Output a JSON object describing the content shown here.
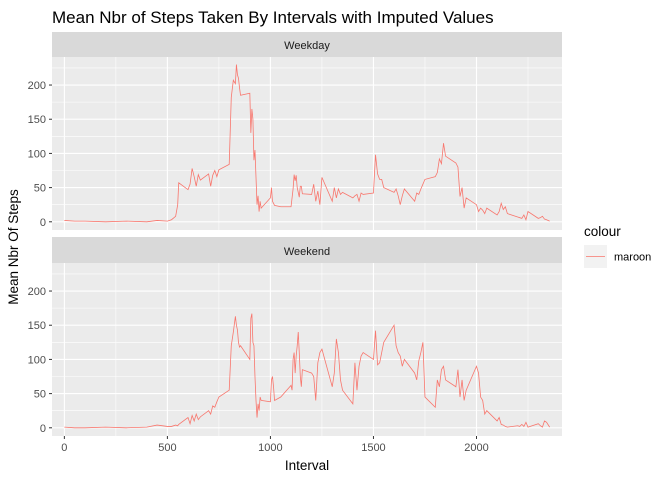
{
  "chart_data": {
    "type": "line",
    "title": "Mean Nbr of Steps Taken By Intervals with Imputed Values",
    "xlabel": "Interval",
    "ylabel": "Mean Nbr Of Steps",
    "xlim": [
      -60,
      2415
    ],
    "ylim": [
      -12,
      241
    ],
    "x_ticks": [
      0,
      500,
      1000,
      1500,
      2000
    ],
    "y_ticks": [
      0,
      50,
      100,
      150,
      200
    ],
    "grid": true,
    "line_color": "#F8766D",
    "legend": {
      "title": "colour",
      "placement": "right",
      "entries": [
        {
          "label": "maroon",
          "color": "#F8766D"
        }
      ]
    },
    "facets": [
      {
        "strip": "Weekday",
        "series": [
          {
            "name": "maroon",
            "x": [
              0,
              50,
              100,
              200,
              300,
              400,
              450,
              500,
              520,
              540,
              550,
              555,
              600,
              610,
              620,
              630,
              640,
              650,
              660,
              700,
              710,
              720,
              730,
              740,
              750,
              800,
              810,
              820,
              830,
              835,
              840,
              845,
              850,
              855,
              900,
              905,
              910,
              915,
              920,
              925,
              930,
              935,
              940,
              945,
              950,
              955,
              1000,
              1005,
              1010,
              1015,
              1020,
              1050,
              1100,
              1105,
              1110,
              1115,
              1120,
              1125,
              1130,
              1135,
              1140,
              1145,
              1150,
              1155,
              1200,
              1210,
              1220,
              1230,
              1240,
              1250,
              1300,
              1310,
              1320,
              1330,
              1340,
              1350,
              1400,
              1410,
              1420,
              1430,
              1440,
              1450,
              1500,
              1510,
              1520,
              1530,
              1540,
              1550,
              1600,
              1610,
              1620,
              1630,
              1640,
              1650,
              1700,
              1710,
              1720,
              1730,
              1740,
              1750,
              1800,
              1810,
              1820,
              1830,
              1840,
              1850,
              1900,
              1910,
              1920,
              1930,
              1940,
              1950,
              2000,
              2010,
              2020,
              2030,
              2040,
              2050,
              2100,
              2110,
              2120,
              2130,
              2140,
              2150,
              2200,
              2210,
              2220,
              2230,
              2240,
              2250,
              2300,
              2310,
              2320,
              2330,
              2340,
              2355
            ],
            "y": [
              2,
              1,
              1,
              0,
              1,
              0,
              2,
              1,
              3,
              8,
              25,
              57,
              47,
              55,
              78,
              66,
              52,
              69,
              61,
              70,
              52,
              68,
              75,
              66,
              76,
              84,
              182,
              207,
              202,
              230,
              215,
              210,
              196,
              185,
              188,
              130,
              165,
              150,
              90,
              105,
              65,
              25,
              38,
              15,
              30,
              20,
              35,
              50,
              30,
              27,
              24,
              22,
              22,
              35,
              48,
              69,
              60,
              68,
              50,
              43,
              36,
              52,
              52,
              41,
              40,
              55,
              30,
              45,
              25,
              65,
              30,
              50,
              35,
              48,
              40,
              43,
              35,
              38,
              40,
              30,
              42,
              40,
              42,
              98,
              70,
              62,
              62,
              50,
              43,
              48,
              38,
              25,
              38,
              48,
              30,
              42,
              40,
              48,
              55,
              62,
              66,
              72,
              92,
              85,
              115,
              96,
              86,
              80,
              37,
              50,
              20,
              35,
              25,
              15,
              20,
              17,
              12,
              20,
              10,
              15,
              27,
              18,
              22,
              12,
              7,
              6,
              5,
              10,
              3,
              15,
              5,
              6,
              8,
              4,
              3,
              1
            ]
          }
        ]
      },
      {
        "strip": "Weekend",
        "series": [
          {
            "name": "maroon",
            "x": [
              0,
              50,
              100,
              200,
              300,
              400,
              450,
              500,
              520,
              540,
              550,
              555,
              600,
              610,
              620,
              630,
              640,
              650,
              660,
              700,
              710,
              720,
              730,
              740,
              750,
              800,
              810,
              820,
              830,
              835,
              840,
              845,
              850,
              855,
              900,
              905,
              910,
              915,
              920,
              925,
              930,
              935,
              940,
              945,
              950,
              955,
              1000,
              1005,
              1010,
              1015,
              1020,
              1050,
              1100,
              1105,
              1110,
              1115,
              1120,
              1125,
              1130,
              1135,
              1140,
              1145,
              1150,
              1155,
              1200,
              1210,
              1220,
              1230,
              1240,
              1250,
              1300,
              1310,
              1320,
              1330,
              1340,
              1350,
              1400,
              1410,
              1420,
              1430,
              1440,
              1450,
              1500,
              1510,
              1520,
              1530,
              1540,
              1550,
              1600,
              1610,
              1620,
              1630,
              1640,
              1650,
              1700,
              1710,
              1720,
              1730,
              1740,
              1750,
              1800,
              1810,
              1820,
              1830,
              1840,
              1850,
              1900,
              1910,
              1920,
              1930,
              1940,
              1950,
              2000,
              2010,
              2020,
              2030,
              2040,
              2050,
              2100,
              2110,
              2120,
              2130,
              2140,
              2150,
              2200,
              2210,
              2220,
              2230,
              2240,
              2250,
              2300,
              2310,
              2320,
              2330,
              2340,
              2355
            ],
            "y": [
              1,
              0,
              0,
              1,
              0,
              1,
              4,
              2,
              2,
              4,
              3,
              5,
              15,
              6,
              18,
              10,
              20,
              12,
              16,
              25,
              20,
              32,
              30,
              38,
              45,
              55,
              120,
              140,
              163,
              150,
              143,
              125,
              118,
              120,
              100,
              160,
              167,
              125,
              120,
              75,
              40,
              15,
              35,
              25,
              45,
              40,
              38,
              70,
              75,
              60,
              40,
              45,
              62,
              55,
              100,
              110,
              80,
              105,
              120,
              140,
              110,
              75,
              60,
              85,
              80,
              75,
              40,
              95,
              110,
              115,
              60,
              80,
              130,
              110,
              70,
              55,
              35,
              95,
              55,
              90,
              105,
              110,
              100,
              142,
              92,
              95,
              110,
              125,
              150,
              120,
              110,
              105,
              90,
              100,
              80,
              70,
              98,
              110,
              125,
              45,
              30,
              70,
              60,
              85,
              90,
              70,
              60,
              85,
              45,
              70,
              40,
              55,
              90,
              80,
              45,
              40,
              20,
              25,
              10,
              15,
              5,
              4,
              2,
              1,
              3,
              2,
              5,
              2,
              8,
              1,
              6,
              3,
              1,
              10,
              8,
              1
            ]
          }
        ]
      }
    ]
  }
}
